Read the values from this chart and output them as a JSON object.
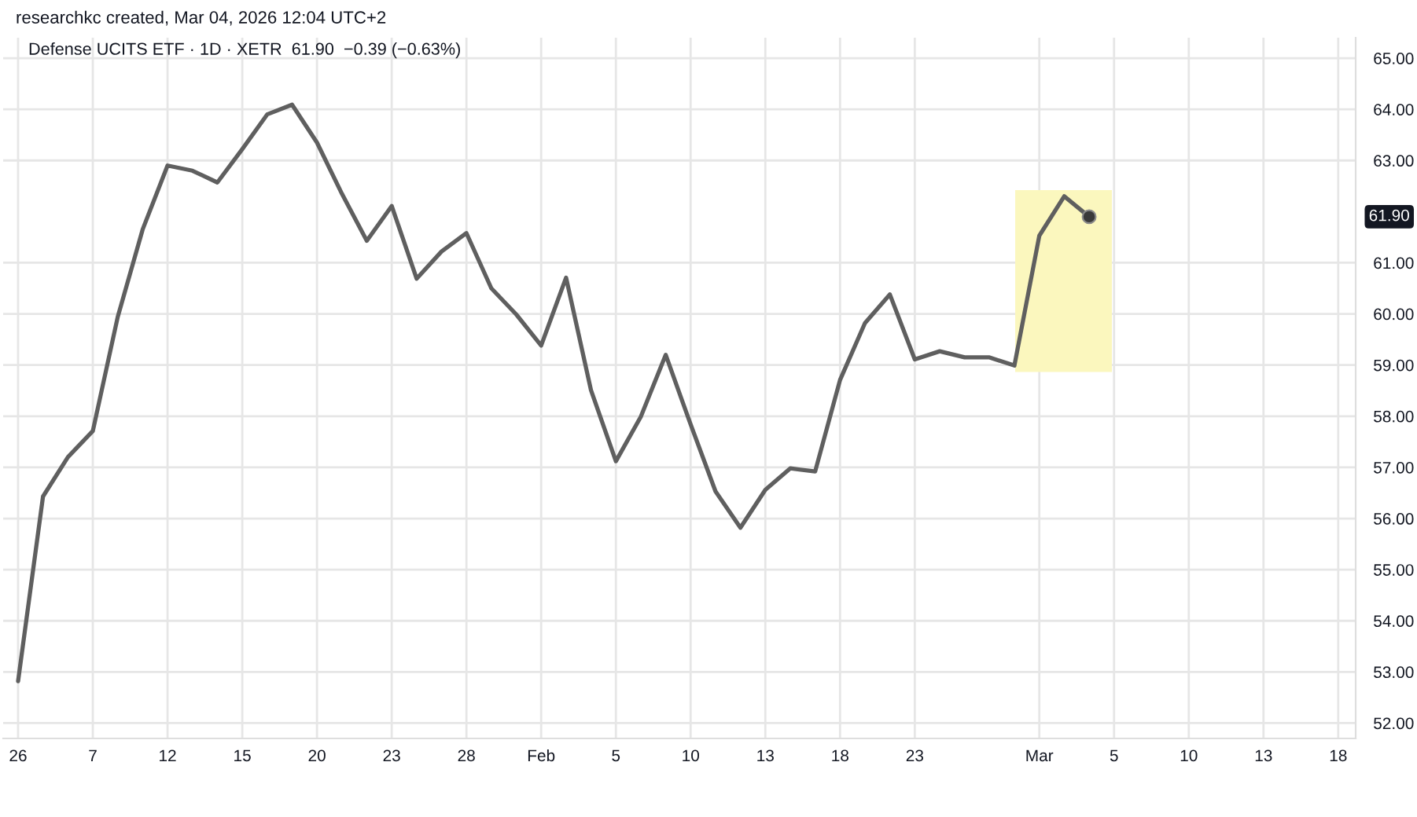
{
  "chart_data": {
    "type": "line",
    "title": "Defense UCITS ETF · 1D · XETR  61.90  −0.39 (−0.63%)",
    "annotations": [
      "researchkc created, Mar 04, 2026 12:04 UTC+2",
      "61.90"
    ],
    "categories": [
      "26",
      null,
      null,
      "7",
      null,
      null,
      "12",
      null,
      null,
      "15",
      null,
      null,
      "20",
      null,
      null,
      "23",
      null,
      null,
      "28",
      null,
      null,
      "Feb",
      null,
      null,
      "5",
      null,
      null,
      "10",
      null,
      null,
      "13",
      null,
      null,
      "18",
      null,
      null,
      "23",
      null,
      null,
      null,
      null,
      "Mar",
      null,
      null,
      "5",
      null,
      null,
      "10",
      null,
      null,
      "13",
      null,
      null,
      "18"
    ],
    "ylim": [
      51.7,
      65.4
    ],
    "yticks": [
      {
        "value": 52,
        "label": "52.00"
      },
      {
        "value": 53,
        "label": "53.00"
      },
      {
        "value": 54,
        "label": "54.00"
      },
      {
        "value": 55,
        "label": "55.00"
      },
      {
        "value": 56,
        "label": "56.00"
      },
      {
        "value": 57,
        "label": "57.00"
      },
      {
        "value": 58,
        "label": "58.00"
      },
      {
        "value": 59,
        "label": "59.00"
      },
      {
        "value": 60,
        "label": "60.00"
      },
      {
        "value": 61,
        "label": "61.00"
      },
      {
        "value": 63,
        "label": "63.00"
      },
      {
        "value": 64,
        "label": "64.00"
      },
      {
        "value": 65,
        "label": "65.00"
      }
    ],
    "grid": true,
    "series": [
      {
        "color": "#5f5f5f",
        "values": [
          52.82,
          56.43,
          57.2,
          57.71,
          59.94,
          61.65,
          62.9,
          62.8,
          62.57,
          63.22,
          63.9,
          64.09,
          63.35,
          62.35,
          61.43,
          62.11,
          60.69,
          61.22,
          61.58,
          60.5,
          59.99,
          59.38,
          60.71,
          58.51,
          57.12,
          57.99,
          59.2,
          57.84,
          56.53,
          55.82,
          56.56,
          56.98,
          56.92,
          58.71,
          59.82,
          60.38,
          59.11,
          59.27,
          59.15,
          59.15,
          58.99,
          61.53,
          62.3,
          61.9,
          null,
          null,
          null,
          null,
          null,
          null,
          null,
          null,
          null,
          null
        ]
      },
      {
        "type": "scatter",
        "marker": "circle",
        "color": "#3a3a3a",
        "values": [
          null,
          null,
          null,
          null,
          null,
          null,
          null,
          null,
          null,
          null,
          null,
          null,
          null,
          null,
          null,
          null,
          null,
          null,
          null,
          null,
          null,
          null,
          null,
          null,
          null,
          null,
          null,
          null,
          null,
          null,
          null,
          null,
          null,
          null,
          null,
          null,
          null,
          null,
          null,
          null,
          null,
          null,
          null,
          61.9,
          null,
          null,
          null,
          null,
          null,
          null,
          null,
          null,
          null,
          null
        ]
      }
    ]
  }
}
